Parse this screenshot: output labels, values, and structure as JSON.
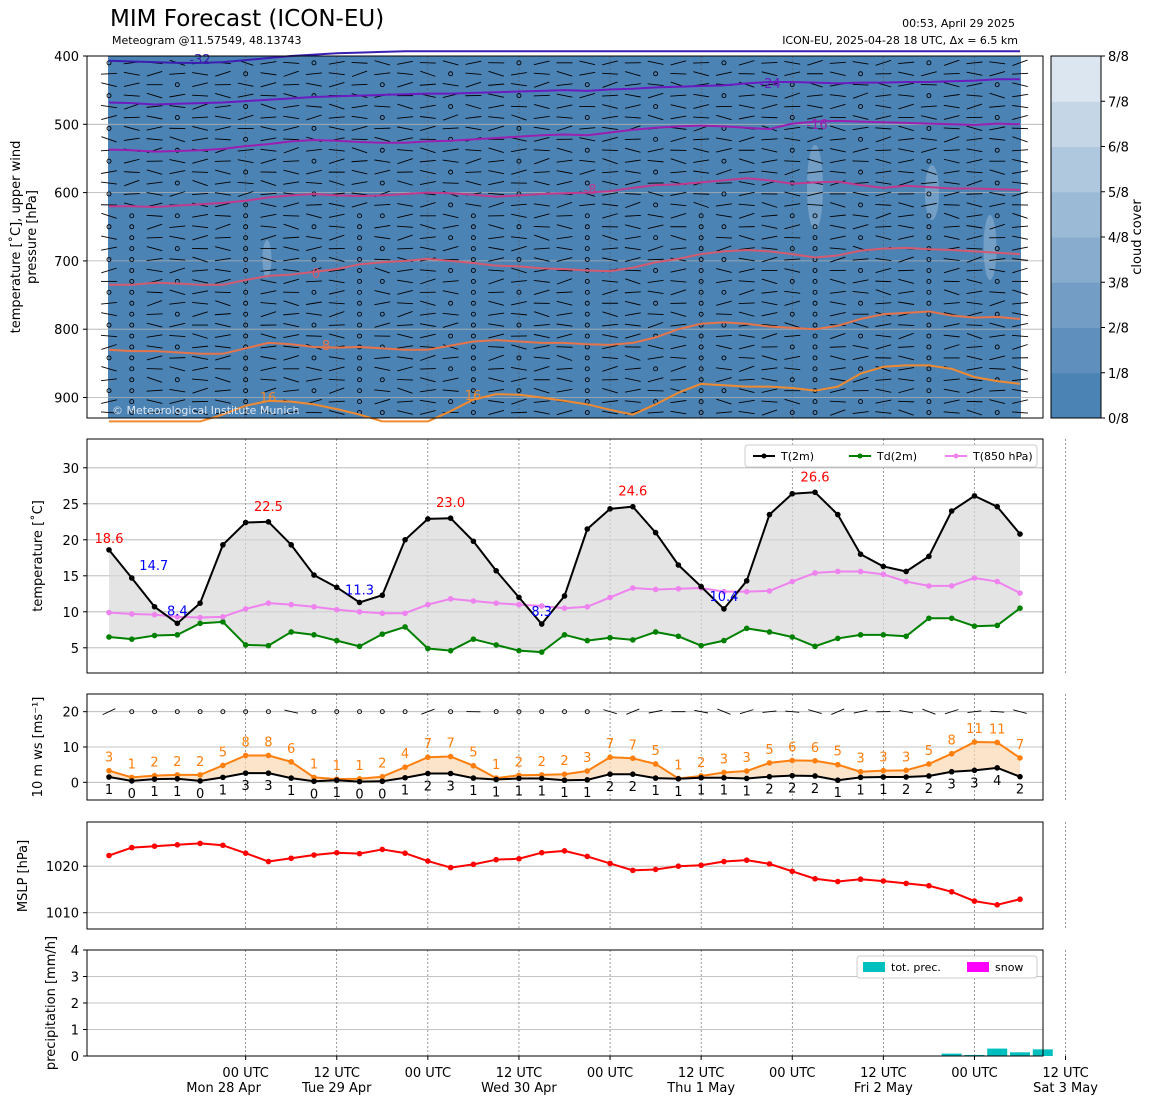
{
  "header": {
    "title": "MIM Forecast (ICON-EU)",
    "subtitle": "Meteogram @11.57549, 48.13743",
    "issued": "00:53, April 29 2025",
    "model_run": "ICON-EU, 2025-04-28 18 UTC, Δx = 6.5 km",
    "copyright": "© Meteorological Institute Munich"
  },
  "colors": {
    "temp": "#000000",
    "dew": "#008000",
    "t850": "#ee82ee",
    "max_label": "#ff0000",
    "min_label": "#0000ff",
    "wind_mean": "#ff7f0e",
    "mslp": "#ff0000",
    "tot_prec": "#00bfbf",
    "snow": "#ff00ff",
    "cloud_bg": "#4c83b5"
  },
  "time_axis": {
    "start": "2025-04-28T03:00Z",
    "step_hours": 3,
    "ticks": [
      {
        "hour": 21,
        "label": "00 UTC",
        "day": "Mon 28 Apr"
      },
      {
        "hour": 33,
        "label": "12 UTC",
        "day": "Tue 29 Apr"
      },
      {
        "hour": 45,
        "label": "00 UTC",
        "day": ""
      },
      {
        "hour": 57,
        "label": "12 UTC",
        "day": "Wed 30 Apr"
      },
      {
        "hour": 69,
        "label": "00 UTC",
        "day": ""
      },
      {
        "hour": 81,
        "label": "12 UTC",
        "day": "Thu 1 May"
      },
      {
        "hour": 93,
        "label": "00 UTC",
        "day": ""
      },
      {
        "hour": 105,
        "label": "12 UTC",
        "day": "Fri 2 May"
      },
      {
        "hour": 117,
        "label": "00 UTC",
        "day": ""
      },
      {
        "hour": 129,
        "label": "12 UTC",
        "day": "Sat 3 May"
      }
    ]
  },
  "chart_data": [
    {
      "panel": "upper_air",
      "type": "heatmap",
      "ylabel": "temperature [$^\\circ$C], upper wind\npressure [hPa]",
      "ylabel_lines": [
        "temperature [˚C], upper wind",
        "pressure [hPa]"
      ],
      "yticks": [
        400,
        500,
        600,
        700,
        800,
        900
      ],
      "ylim": [
        930,
        400
      ],
      "colorbar": {
        "label": "cloud cover",
        "ticks": [
          "0/8",
          "1/8",
          "2/8",
          "3/8",
          "4/8",
          "5/8",
          "6/8",
          "7/8",
          "8/8"
        ]
      },
      "isotherms": [
        {
          "label": "-32",
          "color": "#3a1fb0",
          "p": [
            407,
            408,
            409,
            410,
            410,
            409,
            406,
            403,
            400,
            398,
            396,
            395,
            394,
            393,
            393,
            393,
            393,
            393,
            393,
            393,
            393,
            393,
            393,
            393,
            393,
            393,
            393,
            393,
            393,
            393,
            393,
            393,
            393,
            393,
            393,
            393,
            393,
            393,
            393,
            393,
            393
          ]
        },
        {
          "label": "-24",
          "color": "#6b1bbf",
          "p": [
            468,
            469,
            471,
            470,
            469,
            468,
            466,
            464,
            462,
            460,
            459,
            458,
            457,
            456,
            455,
            455,
            454,
            453,
            452,
            451,
            450,
            451,
            449,
            448,
            446,
            445,
            444,
            443,
            440,
            438,
            438,
            439,
            440,
            439,
            439,
            438,
            438,
            437,
            436,
            434,
            434
          ]
        },
        {
          "label": "-16",
          "color": "#9a1fb0",
          "p": [
            537,
            538,
            540,
            539,
            538,
            536,
            532,
            529,
            525,
            523,
            524,
            526,
            527,
            527,
            525,
            524,
            522,
            520,
            518,
            516,
            515,
            516,
            512,
            508,
            505,
            503,
            502,
            503,
            505,
            507,
            499,
            496,
            495,
            496,
            497,
            498,
            499,
            500,
            501,
            499,
            500
          ]
        },
        {
          "label": "-8",
          "color": "#c13a8e",
          "p": [
            620,
            620,
            621,
            619,
            617,
            615,
            612,
            607,
            604,
            602,
            604,
            605,
            604,
            602,
            600,
            601,
            603,
            606,
            604,
            602,
            601,
            600,
            598,
            593,
            589,
            588,
            585,
            582,
            579,
            582,
            587,
            585,
            584,
            589,
            593,
            590,
            592,
            594,
            594,
            595,
            596
          ]
        },
        {
          "label": "0",
          "color": "#d45a70",
          "p": [
            735,
            735,
            732,
            733,
            735,
            735,
            728,
            722,
            720,
            716,
            712,
            705,
            702,
            700,
            697,
            700,
            703,
            707,
            708,
            711,
            712,
            714,
            715,
            710,
            702,
            697,
            690,
            686,
            684,
            686,
            690,
            695,
            692,
            685,
            682,
            681,
            683,
            684,
            686,
            688,
            690
          ]
        },
        {
          "label": "8",
          "color": "#e6744a",
          "p": [
            830,
            832,
            832,
            834,
            836,
            836,
            828,
            820,
            822,
            826,
            827,
            826,
            828,
            830,
            830,
            824,
            818,
            816,
            818,
            820,
            820,
            822,
            823,
            820,
            812,
            800,
            792,
            790,
            792,
            796,
            798,
            800,
            795,
            785,
            778,
            776,
            774,
            780,
            783,
            782,
            785
          ]
        },
        {
          "label": "16",
          "color": "#f08a30",
          "p": [
            950,
            948,
            945,
            940,
            935,
            925,
            912,
            905,
            906,
            910,
            917,
            925,
            935,
            945,
            940,
            920,
            903,
            895,
            896,
            900,
            905,
            910,
            918,
            925,
            910,
            893,
            880,
            882,
            884,
            884,
            886,
            890,
            884,
            865,
            855,
            853,
            853,
            858,
            870,
            876,
            880
          ]
        }
      ]
    },
    {
      "panel": "temperature",
      "type": "line",
      "ylabel": "temperature [$^\\circ$C]",
      "ylabel_text": "temperature [˚C]",
      "yticks": [
        5,
        10,
        15,
        20,
        25,
        30
      ],
      "ylim": [
        1.5,
        34
      ],
      "legend": {
        "placement": "top-right",
        "entries": [
          "T(2m)",
          "Td(2m)",
          "T(850 hPa)"
        ]
      },
      "series": [
        {
          "name": "T(2m)",
          "values": [
            18.6,
            14.7,
            10.7,
            8.4,
            11.2,
            19.3,
            22.4,
            22.5,
            19.3,
            15.1,
            13.4,
            11.3,
            12.3,
            20,
            22.9,
            23,
            19.8,
            15.7,
            12,
            8.3,
            12.2,
            21.5,
            24.3,
            24.6,
            21,
            16.5,
            13.5,
            10.4,
            14.3,
            23.5,
            26.4,
            26.6,
            23.5,
            18,
            16.3,
            15.6,
            17.7,
            24,
            26.1,
            24.6,
            20.8
          ]
        },
        {
          "name": "Td(2m)",
          "values": [
            6.5,
            6.2,
            6.7,
            6.8,
            8.4,
            8.6,
            5.4,
            5.3,
            7.2,
            6.8,
            6,
            5.2,
            6.9,
            7.9,
            4.9,
            4.6,
            6.2,
            5.4,
            4.6,
            4.4,
            6.8,
            6,
            6.4,
            6.1,
            7.2,
            6.6,
            5.3,
            6,
            7.7,
            7.2,
            6.5,
            5.2,
            6.3,
            6.8,
            6.8,
            6.6,
            9.1,
            9.1,
            8,
            8.1,
            10.5
          ]
        },
        {
          "name": "T(850 hPa)",
          "values": [
            9.9,
            9.7,
            9.6,
            9.3,
            9.2,
            9.3,
            10.4,
            11.2,
            11,
            10.7,
            10.3,
            10,
            9.8,
            9.8,
            11,
            11.8,
            11.5,
            11.2,
            11,
            10.8,
            10.5,
            10.7,
            12,
            13.3,
            13.1,
            13.2,
            13.3,
            12.8,
            12.8,
            12.9,
            14.2,
            15.4,
            15.6,
            15.6,
            15.2,
            14.2,
            13.6,
            13.6,
            14.7,
            14.2,
            12.6
          ]
        }
      ],
      "extrema": [
        {
          "value": "18.6",
          "kind": "max",
          "index": 0
        },
        {
          "value": "14.7",
          "kind": "min",
          "index": 1
        },
        {
          "value": "8.4",
          "kind": "min",
          "index": 3
        },
        {
          "value": "22.5",
          "kind": "max",
          "index": 7
        },
        {
          "value": "11.3",
          "kind": "min",
          "index": 11
        },
        {
          "value": "23.0",
          "kind": "max",
          "index": 15
        },
        {
          "value": "8.3",
          "kind": "min",
          "index": 19
        },
        {
          "value": "24.6",
          "kind": "max",
          "index": 23
        },
        {
          "value": "10.4",
          "kind": "min",
          "index": 27
        },
        {
          "value": "26.6",
          "kind": "max",
          "index": 31
        }
      ]
    },
    {
      "panel": "wind",
      "type": "line",
      "ylabel": "10 m ws [ms$^{-1}$]",
      "ylabel_text": "10 m ws [ms⁻¹]",
      "yticks": [
        0,
        10,
        20
      ],
      "ylim": [
        -5,
        25
      ],
      "series": [
        {
          "name": "",
          "role": "mean",
          "values": [
            3.3,
            1.4,
            1.9,
            2.1,
            2.1,
            4.8,
            7.6,
            7.6,
            5.8,
            1.4,
            0.9,
            1,
            1.6,
            4.3,
            7.1,
            7.3,
            4.7,
            1.2,
            2,
            2.1,
            2.3,
            3.2,
            7.1,
            6.8,
            5.2,
            1.1,
            1.8,
            2.8,
            3.2,
            5.5,
            6.2,
            6.1,
            5,
            3,
            3.3,
            3.4,
            5.2,
            8.1,
            11.4,
            11.3,
            6.9
          ]
        },
        {
          "name": "",
          "role": "low",
          "values": [
            1.5,
            0.4,
            0.9,
            1,
            0.4,
            1.4,
            2.6,
            2.6,
            1.2,
            0.3,
            0.6,
            0.2,
            0.3,
            1.3,
            2.5,
            2.5,
            1.2,
            0.8,
            1.1,
            1.1,
            0.6,
            0.7,
            2.3,
            2.3,
            1.2,
            1,
            1.3,
            1.3,
            1.1,
            1.6,
            1.9,
            1.8,
            0.6,
            1.4,
            1.5,
            1.5,
            1.8,
            3,
            3.4,
            4.1,
            1.6
          ]
        }
      ],
      "mean_labels": [
        "3",
        "1",
        "2",
        "2",
        "2",
        "5",
        "8",
        "8",
        "6",
        "1",
        "1",
        "1",
        "2",
        "4",
        "7",
        "7",
        "5",
        "1",
        "2",
        "2",
        "2",
        "3",
        "7",
        "7",
        "5",
        "1",
        "2",
        "3",
        "3",
        "5",
        "6",
        "6",
        "5",
        "3",
        "3",
        "3",
        "5",
        "8",
        "11",
        "11",
        "7"
      ],
      "low_labels": [
        "1",
        "0",
        "1",
        "1",
        "0",
        "1",
        "3",
        "3",
        "1",
        "0",
        "1",
        "0",
        "0",
        "1",
        "2",
        "3",
        "1",
        "1",
        "1",
        "1",
        "1",
        "1",
        "2",
        "2",
        "1",
        "1",
        "1",
        "1",
        "1",
        "2",
        "2",
        "2",
        "1",
        "1",
        "1",
        "2",
        "2",
        "3",
        "3",
        "4",
        "2"
      ]
    },
    {
      "panel": "mslp",
      "type": "line",
      "ylabel": "MSLP [hPa]",
      "yticks": [
        1010,
        1020
      ],
      "ylim": [
        1006.5,
        1029.5
      ],
      "series": [
        {
          "name": "",
          "values": [
            1022.3,
            1024,
            1024.3,
            1024.6,
            1024.9,
            1024.5,
            1022.8,
            1021,
            1021.7,
            1022.4,
            1022.9,
            1022.7,
            1023.6,
            1022.8,
            1021.1,
            1019.7,
            1020.4,
            1021.4,
            1021.6,
            1022.9,
            1023.3,
            1022.1,
            1020.6,
            1019.1,
            1019.3,
            1020,
            1020.2,
            1021,
            1021.3,
            1020.5,
            1018.9,
            1017.3,
            1016.7,
            1017.2,
            1016.8,
            1016.3,
            1015.8,
            1014.5,
            1012.5,
            1011.7,
            1012.9
          ]
        }
      ]
    },
    {
      "panel": "precipitation",
      "type": "bar",
      "ylabel": "precipitation [mm/h]",
      "yticks": [
        0,
        1,
        2,
        3,
        4
      ],
      "ylim": [
        0,
        4
      ],
      "legend": {
        "placement": "top-right",
        "entries": [
          "tot. prec.",
          "snow"
        ]
      },
      "series": [
        {
          "name": "tot. prec.",
          "values": [
            0,
            0,
            0,
            0,
            0,
            0,
            0,
            0,
            0,
            0,
            0,
            0,
            0,
            0,
            0,
            0,
            0,
            0,
            0,
            0,
            0,
            0,
            0,
            0,
            0,
            0,
            0,
            0,
            0,
            0,
            0,
            0,
            0,
            0,
            0,
            0,
            0,
            0.09,
            0.04,
            0.28,
            0.14,
            0.25
          ]
        },
        {
          "name": "snow",
          "values": [
            0,
            0,
            0,
            0,
            0,
            0,
            0,
            0,
            0,
            0,
            0,
            0,
            0,
            0,
            0,
            0,
            0,
            0,
            0,
            0,
            0,
            0,
            0,
            0,
            0,
            0,
            0,
            0,
            0,
            0,
            0,
            0,
            0,
            0,
            0,
            0,
            0,
            0,
            0,
            0,
            0,
            0
          ]
        }
      ]
    }
  ]
}
